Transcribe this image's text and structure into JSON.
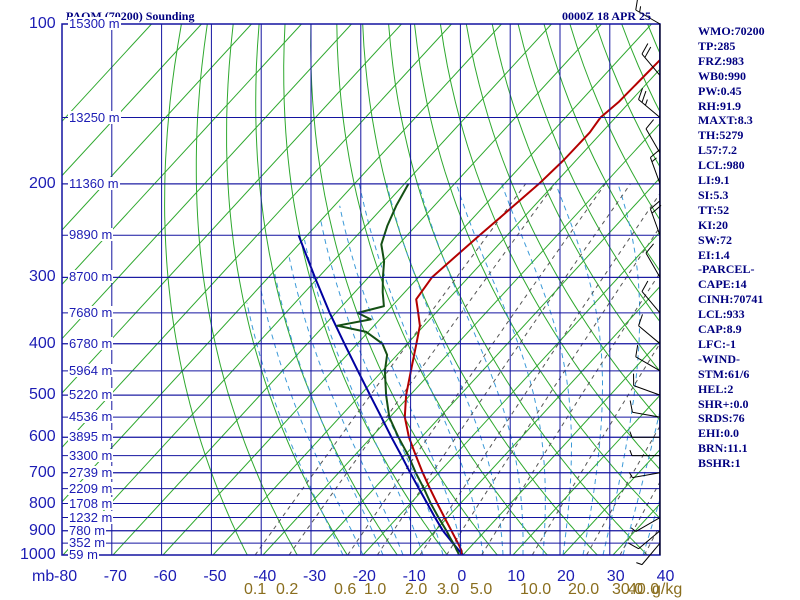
{
  "header": {
    "station": "PAOM (70200) Sounding",
    "time": "0000Z 18 APR 25"
  },
  "axis_units": "mb",
  "mixing_ratio_unit": "g/kg",
  "indices": [
    "WMO:70200",
    "TP:285",
    "FRZ:983",
    "WB0:990",
    "PW:0.45",
    "RH:91.9",
    "MAXT:8.3",
    "TH:5279",
    "L57:7.2",
    "LCL:980",
    "LI:9.1",
    "SI:5.3",
    "TT:52",
    "KI:20",
    "SW:72",
    "EI:1.4",
    "-PARCEL-",
    "CAPE:14",
    "CINH:70741",
    "LCL:933",
    "CAP:8.9",
    "LFC:-1",
    "-WIND-",
    "STM:61/6",
    "HEL:2",
    "SHR+:0.0",
    "SRDS:76",
    "EHI:0.0",
    "BRN:11.1",
    "BSHR:1"
  ],
  "chart_data": {
    "type": "skew-t",
    "title": "PAOM (70200) Sounding",
    "date": "0000Z 18 APR 25",
    "xlabel": "",
    "ylabel": "mb",
    "x_ticks": [
      -80,
      -70,
      -60,
      -50,
      -40,
      -30,
      -20,
      -10,
      0,
      10,
      20,
      30,
      40
    ],
    "x_tick_labels": [
      "-80",
      "-70",
      "-60",
      "-50",
      "-40",
      "-30",
      "-20",
      "-10",
      "0",
      "10",
      "20",
      "30",
      "40"
    ],
    "y_ticks": [
      100,
      200,
      300,
      400,
      500,
      600,
      700,
      800,
      900,
      1000
    ],
    "height_labels": [
      {
        "p": 100,
        "label": "15300 m"
      },
      {
        "p": 150,
        "label": "13250 m"
      },
      {
        "p": 200,
        "label": "11360 m"
      },
      {
        "p": 250,
        "label": "9890 m"
      },
      {
        "p": 300,
        "label": "8700 m"
      },
      {
        "p": 350,
        "label": "7680 m"
      },
      {
        "p": 400,
        "label": "6780 m"
      },
      {
        "p": 450,
        "label": "5964 m"
      },
      {
        "p": 500,
        "label": "5220 m"
      },
      {
        "p": 550,
        "label": "4536 m"
      },
      {
        "p": 600,
        "label": "3895 m"
      },
      {
        "p": 650,
        "label": "3300 m"
      },
      {
        "p": 700,
        "label": "2739 m"
      },
      {
        "p": 750,
        "label": "2209 m"
      },
      {
        "p": 800,
        "label": "1708 m"
      },
      {
        "p": 850,
        "label": "1232 m"
      },
      {
        "p": 900,
        "label": "780 m"
      },
      {
        "p": 950,
        "label": "352 m"
      },
      {
        "p": 1000,
        "label": "59 m"
      }
    ],
    "mixing_ratio_labels": [
      "0.1",
      "0.2",
      "0.6",
      "1.0",
      "2.0",
      "3.0",
      "5.0",
      "10.0",
      "20.0",
      "30.0",
      "40.0"
    ],
    "mixing_ratio_values": [
      0.1,
      0.2,
      0.6,
      1.0,
      2.0,
      3.0,
      5.0,
      10.0,
      20.0,
      30.0,
      40.0
    ],
    "temperature": [
      {
        "p": 1000,
        "t": -0.5
      },
      {
        "p": 990,
        "t": -0.7
      },
      {
        "p": 980,
        "t": -1.2
      },
      {
        "p": 960,
        "t": -2.5
      },
      {
        "p": 930,
        "t": -4.6
      },
      {
        "p": 900,
        "t": -6.8
      },
      {
        "p": 850,
        "t": -10.6
      },
      {
        "p": 800,
        "t": -14.6
      },
      {
        "p": 750,
        "t": -18.8
      },
      {
        "p": 700,
        "t": -23.2
      },
      {
        "p": 650,
        "t": -27.7
      },
      {
        "p": 600,
        "t": -32.5
      },
      {
        "p": 550,
        "t": -37.0
      },
      {
        "p": 500,
        "t": -40.8
      },
      {
        "p": 450,
        "t": -44.3
      },
      {
        "p": 400,
        "t": -48.2
      },
      {
        "p": 370,
        "t": -50.8
      },
      {
        "p": 350,
        "t": -53.5
      },
      {
        "p": 330,
        "t": -56.4
      },
      {
        "p": 300,
        "t": -57.3
      },
      {
        "p": 270,
        "t": -56.3
      },
      {
        "p": 250,
        "t": -55.5
      },
      {
        "p": 230,
        "t": -54.6
      },
      {
        "p": 200,
        "t": -53.1
      },
      {
        "p": 180,
        "t": -52.5
      },
      {
        "p": 160,
        "t": -52.4
      },
      {
        "p": 150,
        "t": -53.0
      },
      {
        "p": 140,
        "t": -52.2
      },
      {
        "p": 125,
        "t": -51.9
      },
      {
        "p": 110,
        "t": -51.5
      },
      {
        "p": 100,
        "t": -51.0
      }
    ],
    "dewpoint": [
      {
        "p": 1000,
        "t": -0.8
      },
      {
        "p": 990,
        "t": -1.4
      },
      {
        "p": 980,
        "t": -2.1
      },
      {
        "p": 960,
        "t": -3.4
      },
      {
        "p": 930,
        "t": -5.6
      },
      {
        "p": 900,
        "t": -7.8
      },
      {
        "p": 850,
        "t": -11.8
      },
      {
        "p": 800,
        "t": -15.9
      },
      {
        "p": 750,
        "t": -20.0
      },
      {
        "p": 700,
        "t": -24.6
      },
      {
        "p": 650,
        "t": -29.2
      },
      {
        "p": 600,
        "t": -34.6
      },
      {
        "p": 550,
        "t": -40.1
      },
      {
        "p": 500,
        "t": -44.8
      },
      {
        "p": 450,
        "t": -49.5
      },
      {
        "p": 420,
        "t": -52.0
      },
      {
        "p": 400,
        "t": -55.0
      },
      {
        "p": 380,
        "t": -60.4
      },
      {
        "p": 370,
        "t": -67.3
      },
      {
        "p": 360,
        "t": -61.8
      },
      {
        "p": 350,
        "t": -65.6
      },
      {
        "p": 340,
        "t": -61.6
      },
      {
        "p": 320,
        "t": -64.4
      },
      {
        "p": 300,
        "t": -67.1
      },
      {
        "p": 280,
        "t": -69.8
      },
      {
        "p": 260,
        "t": -73.5
      },
      {
        "p": 240,
        "t": -75.7
      },
      {
        "p": 220,
        "t": -77.6
      },
      {
        "p": 200,
        "t": -79.2
      }
    ],
    "parcel": [
      {
        "p": 1000,
        "t": 0.0
      },
      {
        "p": 980,
        "t": -1.7
      },
      {
        "p": 950,
        "t": -4.2
      },
      {
        "p": 900,
        "t": -8.5
      },
      {
        "p": 850,
        "t": -12.5
      },
      {
        "p": 800,
        "t": -16.6
      },
      {
        "p": 750,
        "t": -21.0
      },
      {
        "p": 700,
        "t": -25.7
      },
      {
        "p": 650,
        "t": -30.6
      },
      {
        "p": 600,
        "t": -36.0
      },
      {
        "p": 550,
        "t": -41.7
      },
      {
        "p": 500,
        "t": -48.0
      },
      {
        "p": 450,
        "t": -54.9
      },
      {
        "p": 400,
        "t": -62.6
      },
      {
        "p": 350,
        "t": -71.2
      },
      {
        "p": 300,
        "t": -80.7
      },
      {
        "p": 250,
        "t": -91.7
      }
    ],
    "wind_barbs": [
      {
        "p": 100,
        "dir": 300,
        "spd": 15
      },
      {
        "p": 125,
        "dir": 320,
        "spd": 20
      },
      {
        "p": 150,
        "dir": 310,
        "spd": 25
      },
      {
        "p": 175,
        "dir": 330,
        "spd": 10
      },
      {
        "p": 200,
        "dir": 340,
        "spd": 15
      },
      {
        "p": 250,
        "dir": 340,
        "spd": 20
      },
      {
        "p": 300,
        "dir": 330,
        "spd": 10
      },
      {
        "p": 350,
        "dir": 320,
        "spd": 10
      },
      {
        "p": 400,
        "dir": 310,
        "spd": 10
      },
      {
        "p": 450,
        "dir": 300,
        "spd": 10
      },
      {
        "p": 500,
        "dir": 290,
        "spd": 10
      },
      {
        "p": 550,
        "dir": 280,
        "spd": 10
      },
      {
        "p": 600,
        "dir": 270,
        "spd": 5
      },
      {
        "p": 650,
        "dir": 270,
        "spd": 5
      },
      {
        "p": 700,
        "dir": 260,
        "spd": 5
      },
      {
        "p": 850,
        "dir": 240,
        "spd": 5
      },
      {
        "p": 900,
        "dir": 230,
        "spd": 10
      },
      {
        "p": 950,
        "dir": 220,
        "spd": 5
      }
    ],
    "colors": {
      "isobar": "#1414a0",
      "isotherm": "#1414a0",
      "dry_adiabat": "#2ea82e",
      "moist_adiabat": "#3c9ad8",
      "mixing_ratio": "#555555",
      "temperature": "#b40000",
      "dewpoint": "#145014",
      "parcel": "#0000a0",
      "text": "#000080",
      "mixing_label": "#8a6e1e"
    }
  }
}
